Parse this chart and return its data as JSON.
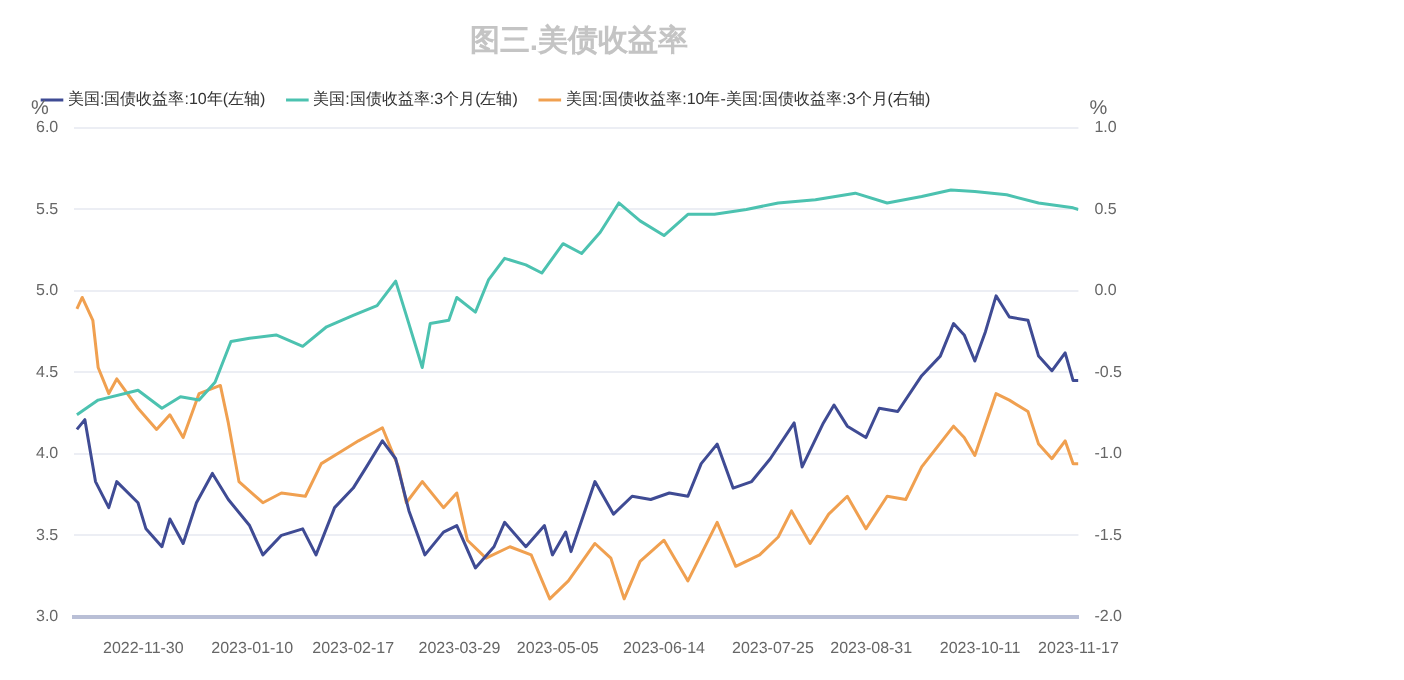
{
  "chart_data": {
    "type": "line",
    "title": "图三.美债收益率",
    "ylabel": "%",
    "y2label": "%",
    "xlim": [
      "2022-11-04",
      "2023-11-17"
    ],
    "xticks": [
      "2022-11-30",
      "2023-01-10",
      "2023-02-17",
      "2023-03-29",
      "2023-05-05",
      "2023-06-14",
      "2023-07-25",
      "2023-08-31",
      "2023-10-11",
      "2023-11-17"
    ],
    "ylim": [
      3,
      6
    ],
    "yticks": [
      {
        "value": 3,
        "label": "3.0"
      },
      {
        "value": 3.5,
        "label": "3.5"
      },
      {
        "value": 4,
        "label": "4.0"
      },
      {
        "value": 4.5,
        "label": "4.5"
      },
      {
        "value": 5,
        "label": "5.0"
      },
      {
        "value": 5.5,
        "label": "5.5"
      },
      {
        "value": 6,
        "label": "6.0"
      }
    ],
    "y2lim": [
      -2,
      1
    ],
    "y2ticks": [
      {
        "value": -2,
        "label": "-2.0"
      },
      {
        "value": -1.5,
        "label": "-1.5"
      },
      {
        "value": -1,
        "label": "-1.0"
      },
      {
        "value": -0.5,
        "label": "-0.5"
      },
      {
        "value": 0,
        "label": "0.0"
      },
      {
        "value": 0.5,
        "label": "0.5"
      },
      {
        "value": 1,
        "label": "1.0"
      }
    ],
    "grid": "y",
    "legend": "top left",
    "marker": "none",
    "line_style": "solid",
    "series": [
      {
        "name": "美国:国债收益率:10年(左轴)",
        "color": "#3f4b94",
        "x": [
          "2022-11-05",
          "2022-11-08",
          "2022-11-12",
          "2022-11-17",
          "2022-11-20",
          "2022-11-28",
          "2022-12-01",
          "2022-12-07",
          "2022-12-10",
          "2022-12-15",
          "2022-12-20",
          "2022-12-26",
          "2023-01-01",
          "2023-01-09",
          "2023-01-14",
          "2023-01-21",
          "2023-01-29",
          "2023-02-03",
          "2023-02-10",
          "2023-02-17",
          "2023-02-22",
          "2023-02-28",
          "2023-03-05",
          "2023-03-10",
          "2023-03-16",
          "2023-03-23",
          "2023-03-28",
          "2023-04-04",
          "2023-04-11",
          "2023-04-15",
          "2023-04-23",
          "2023-04-30",
          "2023-05-03",
          "2023-05-08",
          "2023-05-10",
          "2023-05-19",
          "2023-05-26",
          "2023-06-02",
          "2023-06-09",
          "2023-06-16",
          "2023-06-23",
          "2023-06-28",
          "2023-07-04",
          "2023-07-10",
          "2023-07-17",
          "2023-07-24",
          "2023-08-02",
          "2023-08-05",
          "2023-08-13",
          "2023-08-17",
          "2023-08-22",
          "2023-08-29",
          "2023-09-03",
          "2023-09-10",
          "2023-09-19",
          "2023-09-26",
          "2023-10-01",
          "2023-10-05",
          "2023-10-09",
          "2023-10-13",
          "2023-10-17",
          "2023-10-22",
          "2023-10-29",
          "2023-11-02",
          "2023-11-07",
          "2023-11-12",
          "2023-11-15",
          "2023-11-17"
        ],
        "values": [
          4.15,
          4.21,
          3.83,
          3.67,
          3.83,
          3.7,
          3.54,
          3.43,
          3.6,
          3.45,
          3.7,
          3.88,
          3.72,
          3.56,
          3.38,
          3.5,
          3.54,
          3.38,
          3.67,
          3.79,
          3.92,
          4.08,
          3.97,
          3.65,
          3.38,
          3.52,
          3.56,
          3.3,
          3.43,
          3.58,
          3.43,
          3.56,
          3.38,
          3.52,
          3.4,
          3.83,
          3.63,
          3.74,
          3.72,
          3.76,
          3.74,
          3.94,
          4.06,
          3.79,
          3.83,
          3.97,
          4.19,
          3.92,
          4.19,
          4.3,
          4.17,
          4.1,
          4.28,
          4.26,
          4.48,
          4.6,
          4.8,
          4.73,
          4.57,
          4.75,
          4.97,
          4.84,
          4.82,
          4.6,
          4.51,
          4.62,
          4.45,
          4.45
        ]
      },
      {
        "name": "美国:国债收益率:3个月(左轴)",
        "color": "#4cc2b0",
        "x": [
          "2022-11-05",
          "2022-11-13",
          "2022-11-28",
          "2022-12-07",
          "2022-12-14",
          "2022-12-21",
          "2022-12-27",
          "2023-01-02",
          "2023-01-09",
          "2023-01-19",
          "2023-01-29",
          "2023-02-07",
          "2023-02-17",
          "2023-02-26",
          "2023-03-05",
          "2023-03-09",
          "2023-03-15",
          "2023-03-18",
          "2023-03-25",
          "2023-03-28",
          "2023-04-04",
          "2023-04-09",
          "2023-04-15",
          "2023-04-23",
          "2023-04-29",
          "2023-05-07",
          "2023-05-14",
          "2023-05-21",
          "2023-05-28",
          "2023-06-05",
          "2023-06-14",
          "2023-06-23",
          "2023-07-03",
          "2023-07-15",
          "2023-07-27",
          "2023-08-10",
          "2023-08-25",
          "2023-09-06",
          "2023-09-19",
          "2023-09-30",
          "2023-10-09",
          "2023-10-21",
          "2023-11-02",
          "2023-11-15",
          "2023-11-17"
        ],
        "values": [
          4.24,
          4.33,
          4.39,
          4.28,
          4.35,
          4.33,
          4.44,
          4.69,
          4.71,
          4.73,
          4.66,
          4.78,
          4.85,
          4.91,
          5.06,
          4.85,
          4.53,
          4.8,
          4.82,
          4.96,
          4.87,
          5.07,
          5.2,
          5.16,
          5.11,
          5.29,
          5.23,
          5.36,
          5.54,
          5.43,
          5.34,
          5.47,
          5.47,
          5.5,
          5.54,
          5.56,
          5.6,
          5.54,
          5.58,
          5.62,
          5.61,
          5.59,
          5.54,
          5.51,
          5.5
        ]
      },
      {
        "name": "美国:国债收益率:10年-美国:国债收益率:3个月(右轴)",
        "color": "#f0a050",
        "axis": "y2",
        "x": [
          "2022-11-05",
          "2022-11-07",
          "2022-11-11",
          "2022-11-13",
          "2022-11-17",
          "2022-11-20",
          "2022-11-28",
          "2022-12-05",
          "2022-12-10",
          "2022-12-15",
          "2022-12-21",
          "2022-12-29",
          "2023-01-01",
          "2023-01-05",
          "2023-01-14",
          "2023-01-21",
          "2023-01-30",
          "2023-02-05",
          "2023-02-12",
          "2023-02-19",
          "2023-02-28",
          "2023-03-06",
          "2023-03-09",
          "2023-03-15",
          "2023-03-23",
          "2023-03-28",
          "2023-04-01",
          "2023-04-08",
          "2023-04-17",
          "2023-04-25",
          "2023-05-02",
          "2023-05-09",
          "2023-05-19",
          "2023-05-25",
          "2023-05-30",
          "2023-06-05",
          "2023-06-14",
          "2023-06-23",
          "2023-07-04",
          "2023-07-11",
          "2023-07-20",
          "2023-07-27",
          "2023-08-01",
          "2023-08-08",
          "2023-08-15",
          "2023-08-22",
          "2023-08-29",
          "2023-09-06",
          "2023-09-13",
          "2023-09-19",
          "2023-10-01",
          "2023-10-05",
          "2023-10-09",
          "2023-10-17",
          "2023-10-22",
          "2023-10-29",
          "2023-11-02",
          "2023-11-07",
          "2023-11-12",
          "2023-11-15",
          "2023-11-17"
        ],
        "values": [
          -0.11,
          -0.04,
          -0.18,
          -0.47,
          -0.63,
          -0.54,
          -0.72,
          -0.85,
          -0.76,
          -0.9,
          -0.63,
          -0.58,
          -0.81,
          -1.17,
          -1.3,
          -1.24,
          -1.26,
          -1.06,
          -0.99,
          -0.92,
          -0.84,
          -1.08,
          -1.3,
          -1.17,
          -1.33,
          -1.24,
          -1.53,
          -1.64,
          -1.57,
          -1.62,
          -1.89,
          -1.78,
          -1.55,
          -1.64,
          -1.89,
          -1.66,
          -1.53,
          -1.78,
          -1.42,
          -1.69,
          -1.62,
          -1.51,
          -1.35,
          -1.55,
          -1.37,
          -1.26,
          -1.46,
          -1.26,
          -1.28,
          -1.08,
          -0.83,
          -0.9,
          -1.01,
          -0.63,
          -0.67,
          -0.74,
          -0.94,
          -1.03,
          -0.92,
          -1.06,
          -1.06
        ]
      }
    ]
  }
}
